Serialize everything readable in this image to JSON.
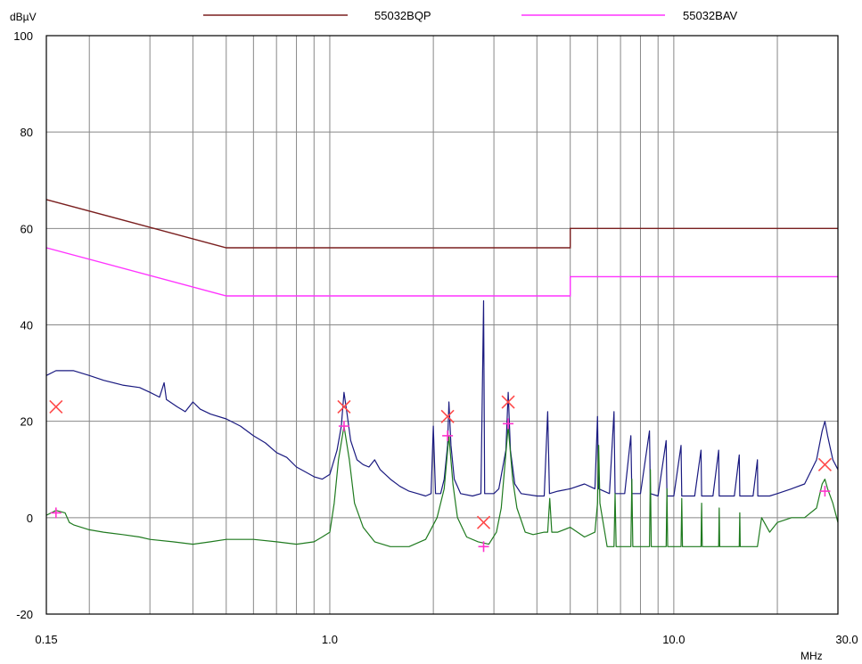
{
  "chart_data": {
    "type": "line",
    "ylabel": "dBµV",
    "xlabel": "MHz",
    "x_scale": "log",
    "xlim": [
      0.15,
      30.0
    ],
    "ylim": [
      -20,
      100
    ],
    "grid": true,
    "legend_position": "top",
    "x_tick_labels": [
      {
        "value": 0.15,
        "label": "0.15"
      },
      {
        "value": 1.0,
        "label": "1.0"
      },
      {
        "value": 10.0,
        "label": "10.0"
      },
      {
        "value": 30.0,
        "label": "30.0"
      }
    ],
    "y_tick_labels": [
      {
        "value": 100,
        "label": "100"
      },
      {
        "value": 80,
        "label": "80"
      },
      {
        "value": 60,
        "label": "60"
      },
      {
        "value": 40,
        "label": "40"
      },
      {
        "value": 20,
        "label": "20"
      },
      {
        "value": 0,
        "label": "0"
      },
      {
        "value": -20,
        "label": "-20"
      }
    ],
    "limit_lines": [
      {
        "name": "55032BQP",
        "color": "#7a1f1f",
        "points": [
          [
            0.15,
            66
          ],
          [
            0.5,
            56
          ],
          [
            5.0,
            56
          ],
          [
            5.0,
            60
          ],
          [
            30.0,
            60
          ]
        ]
      },
      {
        "name": "55032BAV",
        "color": "#ff33ff",
        "points": [
          [
            0.15,
            56
          ],
          [
            0.5,
            46
          ],
          [
            5.0,
            46
          ],
          [
            5.0,
            50
          ],
          [
            30.0,
            50
          ]
        ]
      }
    ],
    "series": [
      {
        "color": "#1a1a80",
        "width": 1.2,
        "points": [
          [
            0.15,
            29.5
          ],
          [
            0.16,
            30.5
          ],
          [
            0.18,
            30.5
          ],
          [
            0.2,
            29.5
          ],
          [
            0.22,
            28.5
          ],
          [
            0.25,
            27.5
          ],
          [
            0.28,
            27
          ],
          [
            0.3,
            26
          ],
          [
            0.32,
            25
          ],
          [
            0.33,
            28
          ],
          [
            0.335,
            24.5
          ],
          [
            0.36,
            23
          ],
          [
            0.38,
            22
          ],
          [
            0.4,
            24
          ],
          [
            0.42,
            22.5
          ],
          [
            0.45,
            21.5
          ],
          [
            0.5,
            20.5
          ],
          [
            0.55,
            19
          ],
          [
            0.6,
            17
          ],
          [
            0.65,
            15.5
          ],
          [
            0.7,
            13.5
          ],
          [
            0.75,
            12.5
          ],
          [
            0.8,
            10.5
          ],
          [
            0.85,
            9.5
          ],
          [
            0.9,
            8.5
          ],
          [
            0.95,
            8
          ],
          [
            1.0,
            9
          ],
          [
            1.05,
            14
          ],
          [
            1.08,
            19
          ],
          [
            1.1,
            26
          ],
          [
            1.12,
            22
          ],
          [
            1.15,
            16
          ],
          [
            1.2,
            12
          ],
          [
            1.25,
            11
          ],
          [
            1.3,
            10.5
          ],
          [
            1.35,
            12
          ],
          [
            1.4,
            10
          ],
          [
            1.5,
            8
          ],
          [
            1.6,
            6.5
          ],
          [
            1.7,
            5.5
          ],
          [
            1.8,
            5
          ],
          [
            1.9,
            4.5
          ],
          [
            1.97,
            5
          ],
          [
            2.0,
            19
          ],
          [
            2.03,
            5
          ],
          [
            2.1,
            5
          ],
          [
            2.15,
            8
          ],
          [
            2.2,
            15
          ],
          [
            2.22,
            24
          ],
          [
            2.25,
            15
          ],
          [
            2.3,
            8
          ],
          [
            2.4,
            5
          ],
          [
            2.6,
            4.5
          ],
          [
            2.75,
            5
          ],
          [
            2.8,
            45
          ],
          [
            2.82,
            5
          ],
          [
            3.0,
            5
          ],
          [
            3.1,
            6
          ],
          [
            3.25,
            14
          ],
          [
            3.3,
            26
          ],
          [
            3.35,
            14
          ],
          [
            3.45,
            7
          ],
          [
            3.6,
            5
          ],
          [
            4.0,
            4.5
          ],
          [
            4.2,
            4.5
          ],
          [
            4.3,
            22
          ],
          [
            4.35,
            5
          ],
          [
            4.6,
            5.5
          ],
          [
            5.0,
            6
          ],
          [
            5.5,
            7
          ],
          [
            5.9,
            6
          ],
          [
            6.0,
            21
          ],
          [
            6.05,
            6
          ],
          [
            6.5,
            5
          ],
          [
            6.7,
            22
          ],
          [
            6.75,
            5
          ],
          [
            7.2,
            5
          ],
          [
            7.5,
            17
          ],
          [
            7.55,
            5
          ],
          [
            8.0,
            5
          ],
          [
            8.5,
            18
          ],
          [
            8.55,
            5
          ],
          [
            9.0,
            4.5
          ],
          [
            9.5,
            16
          ],
          [
            9.55,
            4.5
          ],
          [
            10.0,
            4.5
          ],
          [
            10.5,
            15
          ],
          [
            10.55,
            4.5
          ],
          [
            11.5,
            4.5
          ],
          [
            12.0,
            14
          ],
          [
            12.05,
            4.5
          ],
          [
            13.0,
            4.5
          ],
          [
            13.5,
            14
          ],
          [
            13.55,
            4.5
          ],
          [
            15.0,
            4.5
          ],
          [
            15.5,
            13
          ],
          [
            15.55,
            4.5
          ],
          [
            17.0,
            4.5
          ],
          [
            17.5,
            12
          ],
          [
            17.55,
            4.5
          ],
          [
            19.0,
            4.5
          ],
          [
            20.0,
            5
          ],
          [
            22.0,
            6
          ],
          [
            24.0,
            7
          ],
          [
            26.0,
            12
          ],
          [
            27.0,
            18
          ],
          [
            27.5,
            20
          ],
          [
            28.0,
            17
          ],
          [
            29.0,
            12
          ],
          [
            30.0,
            10
          ]
        ]
      },
      {
        "color": "#1f7a1f",
        "width": 1.2,
        "points": [
          [
            0.15,
            0.5
          ],
          [
            0.16,
            1.5
          ],
          [
            0.17,
            1
          ],
          [
            0.175,
            -1
          ],
          [
            0.18,
            -1.5
          ],
          [
            0.2,
            -2.5
          ],
          [
            0.22,
            -3
          ],
          [
            0.25,
            -3.5
          ],
          [
            0.28,
            -4
          ],
          [
            0.3,
            -4.5
          ],
          [
            0.35,
            -5
          ],
          [
            0.4,
            -5.5
          ],
          [
            0.45,
            -5
          ],
          [
            0.5,
            -4.5
          ],
          [
            0.6,
            -4.5
          ],
          [
            0.7,
            -5
          ],
          [
            0.8,
            -5.5
          ],
          [
            0.9,
            -5
          ],
          [
            0.95,
            -4
          ],
          [
            1.0,
            -3
          ],
          [
            1.03,
            3
          ],
          [
            1.06,
            12
          ],
          [
            1.1,
            19
          ],
          [
            1.14,
            12
          ],
          [
            1.18,
            3
          ],
          [
            1.25,
            -2
          ],
          [
            1.35,
            -5
          ],
          [
            1.5,
            -6
          ],
          [
            1.7,
            -6
          ],
          [
            1.9,
            -4.5
          ],
          [
            2.05,
            0
          ],
          [
            2.15,
            6
          ],
          [
            2.22,
            17
          ],
          [
            2.28,
            7
          ],
          [
            2.35,
            0
          ],
          [
            2.5,
            -4
          ],
          [
            2.7,
            -5
          ],
          [
            2.9,
            -5.5
          ],
          [
            3.05,
            -3
          ],
          [
            3.15,
            2
          ],
          [
            3.3,
            19
          ],
          [
            3.4,
            8
          ],
          [
            3.5,
            2
          ],
          [
            3.7,
            -3
          ],
          [
            3.9,
            -3.5
          ],
          [
            4.2,
            -3
          ],
          [
            4.3,
            -3
          ],
          [
            4.36,
            4
          ],
          [
            4.42,
            -3
          ],
          [
            4.6,
            -3
          ],
          [
            5.0,
            -2
          ],
          [
            5.5,
            -4
          ],
          [
            5.9,
            -3
          ],
          [
            6.0,
            3
          ],
          [
            6.05,
            15
          ],
          [
            6.1,
            3
          ],
          [
            6.4,
            -6
          ],
          [
            6.7,
            -6
          ],
          [
            6.75,
            5
          ],
          [
            6.8,
            -6
          ],
          [
            7.5,
            -6
          ],
          [
            7.55,
            8
          ],
          [
            7.6,
            -6
          ],
          [
            8.5,
            -6
          ],
          [
            8.55,
            10
          ],
          [
            8.6,
            -6
          ],
          [
            9.5,
            -6
          ],
          [
            9.55,
            6
          ],
          [
            9.6,
            -6
          ],
          [
            10.5,
            -6
          ],
          [
            10.55,
            4
          ],
          [
            10.6,
            -6
          ],
          [
            12.0,
            -6
          ],
          [
            12.05,
            3
          ],
          [
            12.1,
            -6
          ],
          [
            13.5,
            -6
          ],
          [
            13.55,
            2
          ],
          [
            13.6,
            -6
          ],
          [
            15.5,
            -6
          ],
          [
            15.55,
            1
          ],
          [
            15.6,
            -6
          ],
          [
            17.0,
            -6
          ],
          [
            17.5,
            -6
          ],
          [
            18.0,
            0
          ],
          [
            19.0,
            -3
          ],
          [
            20.0,
            -1
          ],
          [
            22.0,
            0
          ],
          [
            24.0,
            0
          ],
          [
            26.0,
            2
          ],
          [
            27.0,
            7
          ],
          [
            27.5,
            8
          ],
          [
            28.0,
            6
          ],
          [
            29.0,
            3
          ],
          [
            30.0,
            -1
          ]
        ]
      }
    ],
    "qp_markers": [
      {
        "x": 0.16,
        "y": 23
      },
      {
        "x": 1.1,
        "y": 23
      },
      {
        "x": 2.2,
        "y": 21
      },
      {
        "x": 2.8,
        "y": -1
      },
      {
        "x": 3.3,
        "y": 24
      },
      {
        "x": 27.5,
        "y": 11
      }
    ],
    "av_markers": [
      {
        "x": 0.16,
        "y": 1
      },
      {
        "x": 1.1,
        "y": 19
      },
      {
        "x": 2.2,
        "y": 17
      },
      {
        "x": 2.8,
        "y": -6
      },
      {
        "x": 3.3,
        "y": 19.5
      },
      {
        "x": 27.5,
        "y": 5.5
      }
    ],
    "qp_marker_color": "#ff4a4a",
    "av_marker_color": "#ff33cc"
  }
}
